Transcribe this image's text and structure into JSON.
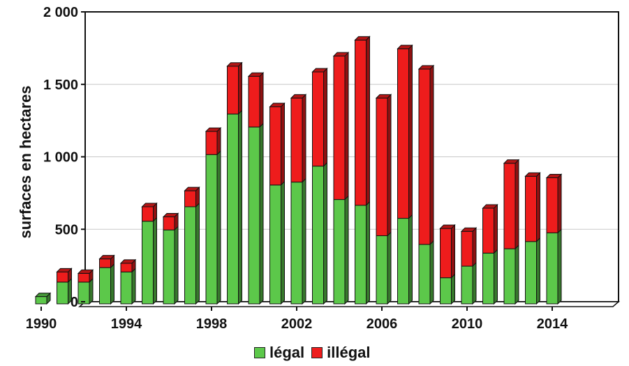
{
  "chart_data": {
    "type": "bar",
    "stacked": true,
    "title": "",
    "xlabel": "",
    "ylabel": "surfaces en hectares",
    "ylim": [
      0,
      2000
    ],
    "y_ticks": [
      0,
      500,
      1000,
      1500,
      2000
    ],
    "y_tick_labels": [
      "0",
      "500",
      "1 000",
      "1 500",
      "2 000"
    ],
    "x_tick_labels": [
      "1990",
      "1994",
      "1998",
      "2002",
      "2006",
      "2010",
      "2014"
    ],
    "categories": [
      "1990",
      "1991",
      "1992",
      "1993",
      "1994",
      "1995",
      "1996",
      "1997",
      "1998",
      "1999",
      "2000",
      "2001",
      "2002",
      "2003",
      "2004",
      "2005",
      "2006",
      "2007",
      "2008",
      "2009",
      "2010",
      "2011",
      "2012",
      "2013",
      "2014"
    ],
    "series": [
      {
        "name": "légal",
        "color": "#5cc84a",
        "values": [
          50,
          150,
          150,
          250,
          220,
          570,
          510,
          670,
          1030,
          1310,
          1220,
          820,
          840,
          950,
          720,
          680,
          470,
          590,
          410,
          180,
          260,
          350,
          380,
          430,
          490
        ]
      },
      {
        "name": "illégal",
        "color": "#ee1c1c",
        "values": [
          0,
          70,
          60,
          60,
          60,
          100,
          90,
          110,
          160,
          330,
          350,
          540,
          580,
          650,
          990,
          1140,
          950,
          1170,
          1210,
          340,
          240,
          310,
          590,
          450,
          380
        ]
      }
    ],
    "grid": true,
    "legend_position": "bottom-center"
  },
  "legend": {
    "legal_label": "légal",
    "illegal_label": "illégal"
  }
}
